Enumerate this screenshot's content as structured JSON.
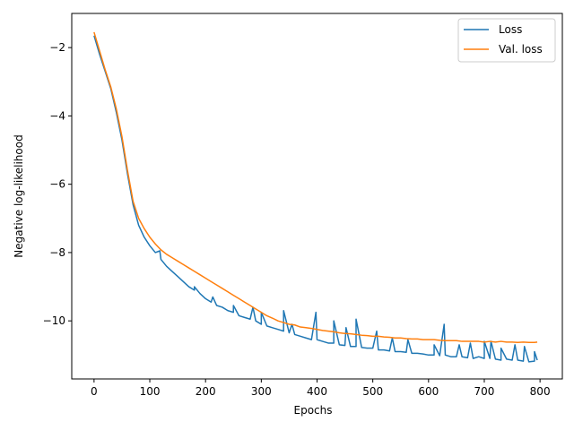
{
  "chart_data": {
    "type": "line",
    "title": "",
    "xlabel": "Epochs",
    "ylabel": "Negative log-likelihood",
    "xlim": [
      -40,
      840
    ],
    "ylim": [
      -11.7,
      -1.0
    ],
    "xticks": [
      0,
      100,
      200,
      300,
      400,
      500,
      600,
      700,
      800
    ],
    "xtick_labels": [
      "0",
      "100",
      "200",
      "300",
      "400",
      "500",
      "600",
      "700",
      "800"
    ],
    "yticks": [
      -2,
      -4,
      -6,
      -8,
      -10
    ],
    "ytick_labels": [
      "−2",
      "−4",
      "−6",
      "−8",
      "−10"
    ],
    "grid": false,
    "legend": "top-right",
    "series": [
      {
        "name": "Loss",
        "color": "#1f77b4",
        "x": [
          0,
          10,
          20,
          30,
          40,
          50,
          60,
          70,
          80,
          90,
          100,
          110,
          120,
          130,
          140,
          150,
          160,
          170,
          180,
          190,
          200,
          210,
          220,
          230,
          240,
          250,
          260,
          270,
          280,
          290,
          300,
          310,
          320,
          330,
          340,
          350,
          360,
          370,
          380,
          390,
          400,
          410,
          420,
          430,
          440,
          450,
          460,
          470,
          480,
          490,
          500,
          510,
          520,
          530,
          540,
          550,
          560,
          570,
          580,
          590,
          600,
          610,
          620,
          630,
          640,
          650,
          660,
          670,
          680,
          690,
          700,
          710,
          720,
          730,
          740,
          750,
          760,
          770,
          780,
          790,
          795
        ],
        "y": [
          -1.65,
          -2.2,
          -2.7,
          -3.2,
          -3.9,
          -4.7,
          -5.7,
          -6.6,
          -7.2,
          -7.55,
          -7.8,
          -8.0,
          -8.2,
          -8.4,
          -8.55,
          -8.7,
          -8.85,
          -9.0,
          -9.1,
          -9.2,
          -9.35,
          -9.45,
          -9.55,
          -9.6,
          -9.7,
          -9.75,
          -9.85,
          -9.9,
          -9.95,
          -10.0,
          -10.1,
          -10.15,
          -10.2,
          -10.25,
          -10.3,
          -10.35,
          -10.4,
          -10.45,
          -10.5,
          -10.55,
          -10.55,
          -10.6,
          -10.65,
          -10.65,
          -10.7,
          -10.72,
          -10.75,
          -10.75,
          -10.78,
          -10.8,
          -10.8,
          -10.85,
          -10.85,
          -10.88,
          -10.9,
          -10.9,
          -10.92,
          -10.95,
          -10.95,
          -10.97,
          -11.0,
          -11.0,
          -11.02,
          -11.0,
          -11.05,
          -11.05,
          -11.05,
          -11.08,
          -11.1,
          -11.05,
          -11.1,
          -11.1,
          -11.12,
          -11.15,
          -11.12,
          -11.15,
          -11.15,
          -11.18,
          -11.2,
          -11.18,
          -11.15
        ],
        "spikes": [
          [
            118,
            -7.95
          ],
          [
            180,
            -9.0
          ],
          [
            213,
            -9.3
          ],
          [
            250,
            -9.55
          ],
          [
            285,
            -9.6
          ],
          [
            300,
            -9.75
          ],
          [
            340,
            -9.7
          ],
          [
            355,
            -10.1
          ],
          [
            398,
            -9.75
          ],
          [
            430,
            -10.0
          ],
          [
            452,
            -10.2
          ],
          [
            470,
            -9.95
          ],
          [
            507,
            -10.3
          ],
          [
            535,
            -10.5
          ],
          [
            563,
            -10.55
          ],
          [
            610,
            -10.7
          ],
          [
            628,
            -10.1
          ],
          [
            655,
            -10.7
          ],
          [
            675,
            -10.65
          ],
          [
            700,
            -10.6
          ],
          [
            712,
            -10.6
          ],
          [
            730,
            -10.8
          ],
          [
            755,
            -10.7
          ],
          [
            772,
            -10.75
          ],
          [
            790,
            -10.9
          ]
        ]
      },
      {
        "name": "Val. loss",
        "color": "#ff7f0e",
        "x": [
          0,
          10,
          20,
          30,
          40,
          50,
          60,
          70,
          80,
          90,
          100,
          110,
          120,
          130,
          140,
          150,
          160,
          170,
          180,
          190,
          200,
          210,
          220,
          230,
          240,
          250,
          260,
          270,
          280,
          290,
          300,
          310,
          320,
          330,
          340,
          350,
          360,
          370,
          380,
          390,
          400,
          410,
          420,
          430,
          440,
          450,
          460,
          470,
          480,
          490,
          500,
          510,
          520,
          530,
          540,
          550,
          560,
          570,
          580,
          590,
          600,
          610,
          620,
          630,
          640,
          650,
          660,
          670,
          680,
          690,
          700,
          710,
          720,
          730,
          740,
          750,
          760,
          770,
          780,
          790,
          795
        ],
        "y": [
          -1.55,
          -2.1,
          -2.65,
          -3.15,
          -3.8,
          -4.6,
          -5.6,
          -6.5,
          -7.0,
          -7.3,
          -7.55,
          -7.75,
          -7.92,
          -8.05,
          -8.15,
          -8.25,
          -8.35,
          -8.45,
          -8.55,
          -8.65,
          -8.75,
          -8.85,
          -8.95,
          -9.05,
          -9.15,
          -9.25,
          -9.35,
          -9.45,
          -9.55,
          -9.65,
          -9.75,
          -9.85,
          -9.92,
          -10.0,
          -10.05,
          -10.1,
          -10.12,
          -10.18,
          -10.2,
          -10.22,
          -10.25,
          -10.28,
          -10.3,
          -10.32,
          -10.35,
          -10.37,
          -10.38,
          -10.4,
          -10.42,
          -10.43,
          -10.45,
          -10.45,
          -10.47,
          -10.48,
          -10.5,
          -10.5,
          -10.52,
          -10.53,
          -10.53,
          -10.55,
          -10.55,
          -10.55,
          -10.57,
          -10.58,
          -10.58,
          -10.58,
          -10.6,
          -10.6,
          -10.6,
          -10.6,
          -10.62,
          -10.6,
          -10.62,
          -10.6,
          -10.62,
          -10.62,
          -10.63,
          -10.62,
          -10.63,
          -10.63,
          -10.62
        ]
      }
    ]
  }
}
